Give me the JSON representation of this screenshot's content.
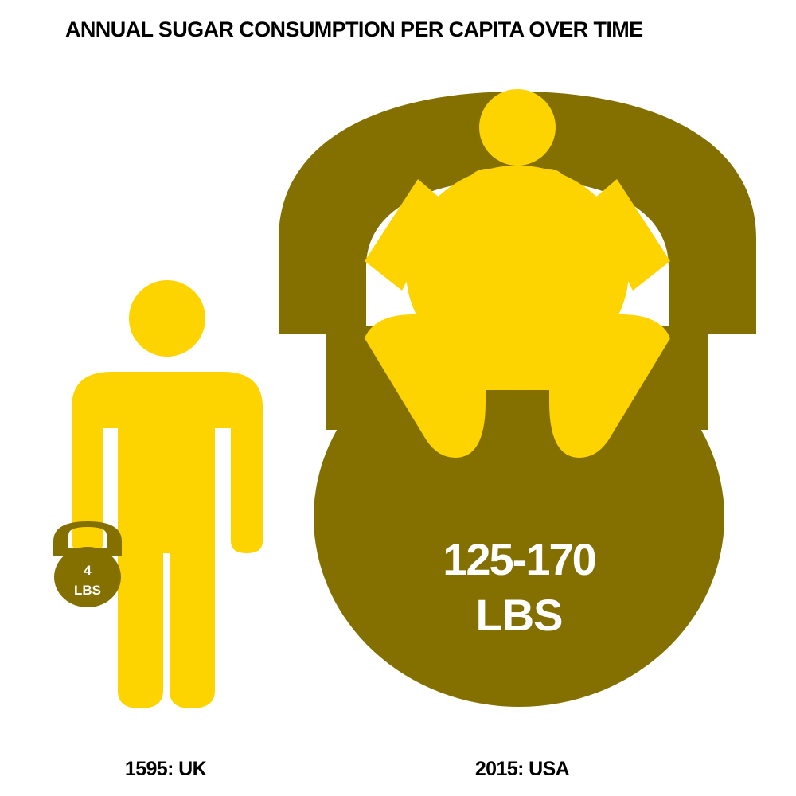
{
  "colors": {
    "figure": "#FDD300",
    "kettlebell": "#847000",
    "value_text": "#ffffff",
    "label_text": "#000000"
  },
  "chart_data": {
    "type": "pictograph",
    "title": "ANNUAL SUGAR CONSUMPTION PER CAPITA OVER TIME",
    "categories": [
      "1595: UK",
      "2015: USA"
    ],
    "series": [
      {
        "values": [
          4,
          147.5
        ],
        "range": [
          null,
          [
            125,
            170
          ]
        ],
        "value_labels": [
          {
            "line1": "4",
            "line2": "LBS"
          },
          {
            "line1": "125-170",
            "line2": "LBS"
          }
        ]
      }
    ],
    "icons": [
      "standing-person-with-small-kettlebell",
      "obese-person-in-large-kettlebell"
    ]
  }
}
